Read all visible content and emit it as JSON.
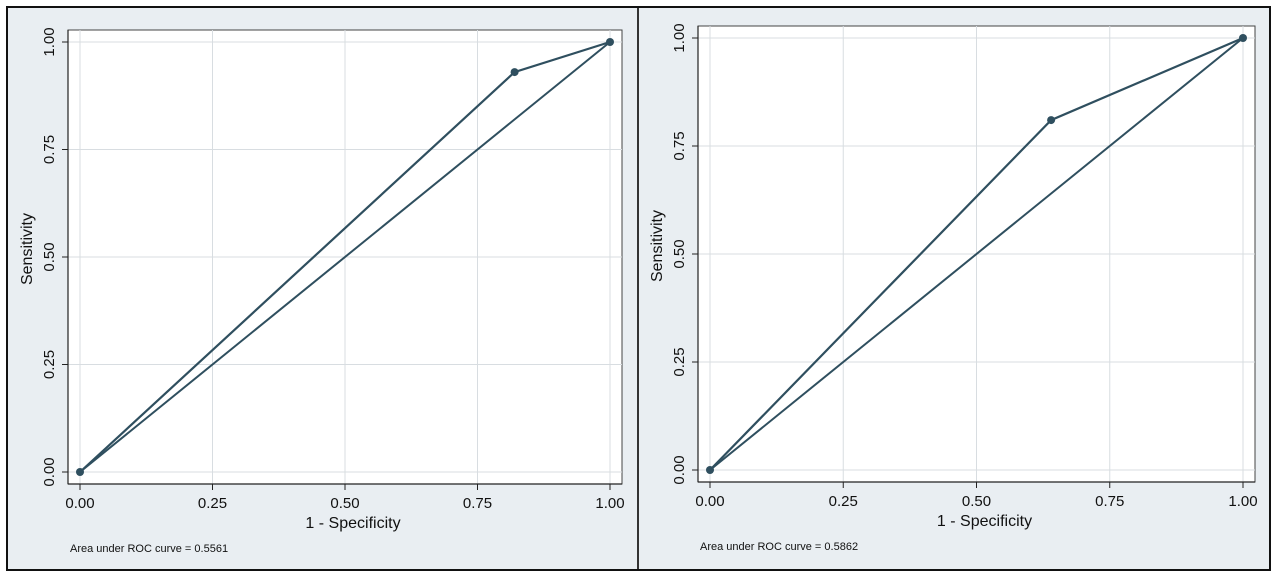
{
  "chart_data": [
    {
      "type": "line",
      "title": "",
      "xlabel": "1 - Specificity",
      "ylabel": "Sensitivity",
      "xlim": [
        0,
        1
      ],
      "ylim": [
        0,
        1
      ],
      "xticks": [
        "0.00",
        "0.25",
        "0.50",
        "0.75",
        "1.00"
      ],
      "yticks": [
        "0.00",
        "0.25",
        "0.50",
        "0.75",
        "1.00"
      ],
      "grid": true,
      "roc_points": [
        [
          0,
          0
        ],
        [
          0.82,
          0.93
        ],
        [
          1,
          1
        ]
      ],
      "diagonal": [
        [
          0,
          0
        ],
        [
          1,
          1
        ]
      ],
      "note": "Area under ROC curve = 0.5561",
      "colors": {
        "line": "#2f4f5f",
        "grid": "#d8dde1",
        "panel": "#ffffff",
        "background": "#e9eef2"
      }
    },
    {
      "type": "line",
      "title": "",
      "xlabel": "1 - Specificity",
      "ylabel": "Sensitivity",
      "xlim": [
        0,
        1
      ],
      "ylim": [
        0,
        1
      ],
      "xticks": [
        "0.00",
        "0.25",
        "0.50",
        "0.75",
        "1.00"
      ],
      "yticks": [
        "0.00",
        "0.25",
        "0.50",
        "0.75",
        "1.00"
      ],
      "grid": true,
      "roc_points": [
        [
          0,
          0
        ],
        [
          0.64,
          0.81
        ],
        [
          1,
          1
        ]
      ],
      "diagonal": [
        [
          0,
          0
        ],
        [
          1,
          1
        ]
      ],
      "note": "Area under ROC curve = 0.5862",
      "colors": {
        "line": "#2f4f5f",
        "grid": "#d8dde1",
        "panel": "#ffffff",
        "background": "#e9eef2"
      }
    }
  ]
}
